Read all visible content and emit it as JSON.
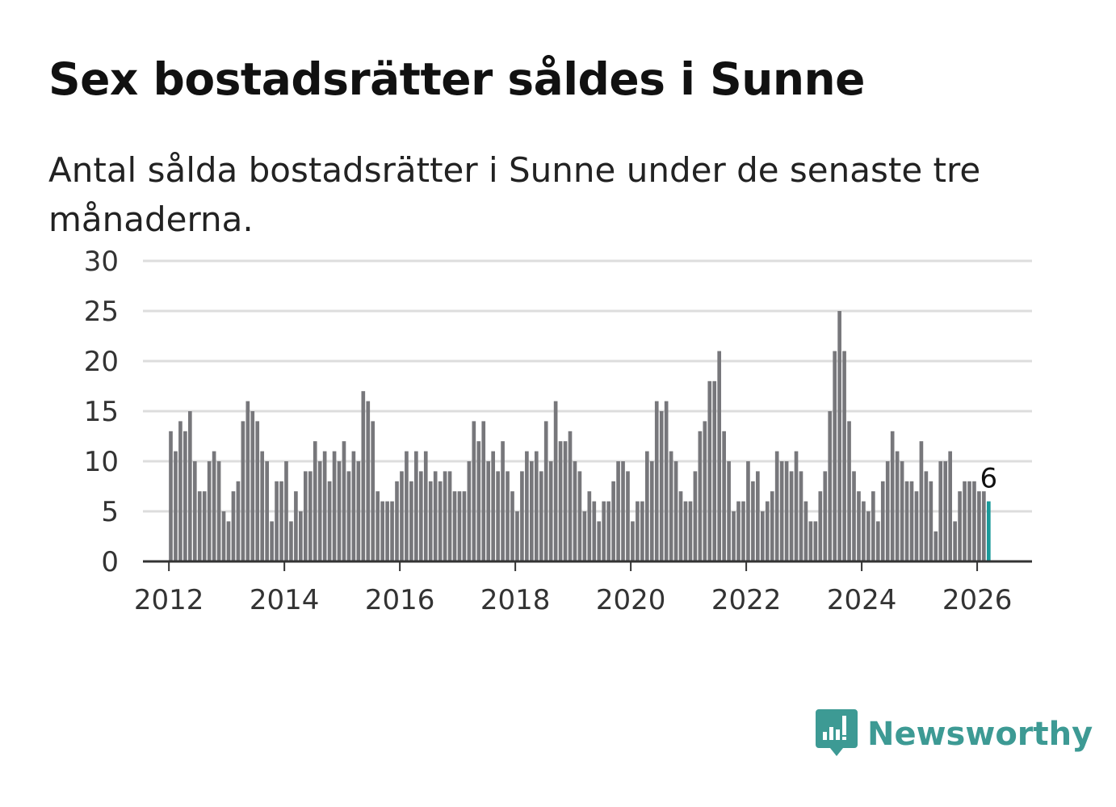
{
  "header": {
    "title": "Sex bostadsrätter såldes i Sunne",
    "subtitle": "Antal sålda bostadsrätter i Sunne under de senaste tre månaderna."
  },
  "brand": {
    "name": "Newsworthy",
    "color": "#3d9a94"
  },
  "colors": {
    "bar": "#77777b",
    "highlight": "#1a9a9a",
    "grid": "#dddddd",
    "axis": "#333333"
  },
  "chart_data": {
    "type": "bar",
    "title": "Sex bostadsrätter såldes i Sunne",
    "subtitle": "Antal sålda bostadsrätter i Sunne under de senaste tre månaderna.",
    "xlabel": "",
    "ylabel": "",
    "ylim": [
      0,
      30
    ],
    "yticks": [
      0,
      5,
      10,
      15,
      20,
      25,
      30
    ],
    "xlim": [
      2011.55,
      2026.95
    ],
    "xticks": [
      2012,
      2014,
      2016,
      2018,
      2020,
      2022,
      2024,
      2026
    ],
    "start": "2012-01",
    "frequency": "monthly",
    "grid": true,
    "highlight_label": "6",
    "series": [
      {
        "name": "Antal sålda bostadsrätter",
        "values": [
          13,
          11,
          14,
          13,
          15,
          10,
          7,
          7,
          10,
          11,
          10,
          5,
          4,
          7,
          8,
          14,
          16,
          15,
          14,
          11,
          10,
          4,
          8,
          8,
          10,
          4,
          7,
          5,
          9,
          9,
          12,
          10,
          11,
          8,
          11,
          10,
          12,
          9,
          11,
          10,
          17,
          16,
          14,
          7,
          6,
          6,
          6,
          8,
          9,
          11,
          8,
          11,
          9,
          11,
          8,
          9,
          8,
          9,
          9,
          7,
          7,
          7,
          10,
          14,
          12,
          14,
          10,
          11,
          9,
          12,
          9,
          7,
          5,
          9,
          11,
          10,
          11,
          9,
          14,
          10,
          16,
          12,
          12,
          13,
          10,
          9,
          5,
          7,
          6,
          4,
          6,
          6,
          8,
          10,
          10,
          9,
          4,
          6,
          6,
          11,
          10,
          16,
          15,
          16,
          11,
          10,
          7,
          6,
          6,
          9,
          13,
          14,
          18,
          18,
          21,
          13,
          10,
          5,
          6,
          6,
          10,
          8,
          9,
          5,
          6,
          7,
          11,
          10,
          10,
          9,
          11,
          9,
          6,
          4,
          4,
          7,
          9,
          15,
          21,
          25,
          21,
          14,
          9,
          7,
          6,
          5,
          7,
          4,
          8,
          10,
          13,
          11,
          10,
          8,
          8,
          7,
          12,
          9,
          8,
          3,
          10,
          10,
          11,
          4,
          7,
          8,
          8,
          8,
          7,
          7,
          6
        ]
      }
    ]
  }
}
